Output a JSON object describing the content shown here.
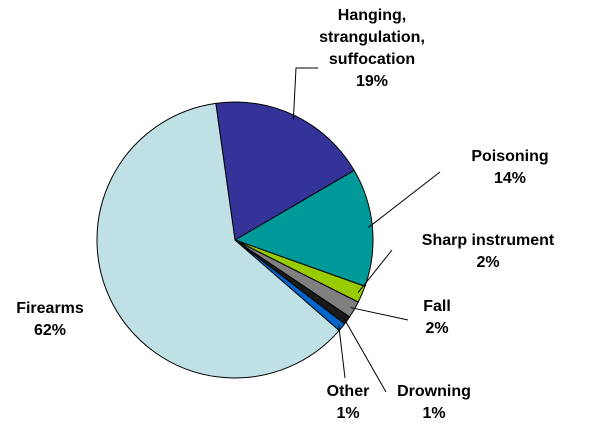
{
  "chart_data": {
    "type": "pie",
    "categories": [
      "Hanging, strangulation, suffocation",
      "Poisoning",
      "Sharp instrument",
      "Fall",
      "Drowning",
      "Other",
      "Firearms"
    ],
    "values": [
      19,
      14,
      2,
      2,
      1,
      1,
      62
    ],
    "value_labels": [
      "19%",
      "14%",
      "2%",
      "2%",
      "1%",
      "1%",
      "62%"
    ],
    "colors": [
      "#333399",
      "#009999",
      "#99cc00",
      "#808080",
      "#1a1a1a",
      "#0066cc",
      "#bfe0e4"
    ]
  }
}
